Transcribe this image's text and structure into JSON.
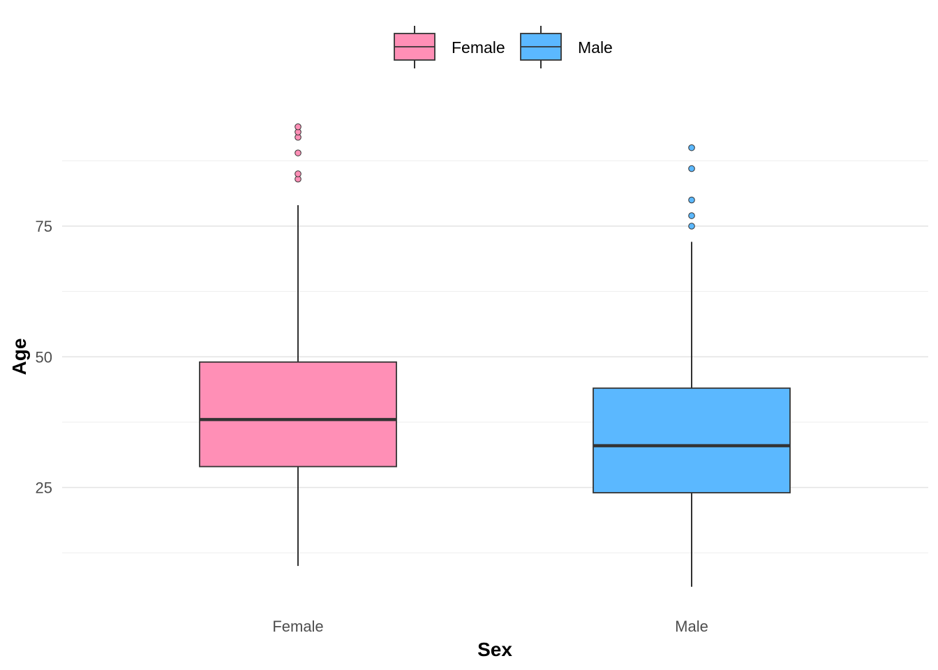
{
  "chart_data": {
    "type": "box",
    "title": "",
    "xlabel": "Sex",
    "ylabel": "Age",
    "ylim": [
      4,
      100
    ],
    "y_ticks": [
      25,
      50,
      75
    ],
    "y_minor_ticks": [
      12.5,
      37.5,
      62.5,
      87.5
    ],
    "grid": true,
    "legend_position": "top",
    "legend": [
      "Female",
      "Male"
    ],
    "categories": [
      "Female",
      "Male"
    ],
    "series": [
      {
        "name": "Female",
        "color": "#ff8fb6",
        "whisker_low": 10,
        "q1": 29,
        "median": 38,
        "q3": 49,
        "whisker_high": 79,
        "outliers": [
          84,
          85,
          89,
          92,
          93,
          94
        ]
      },
      {
        "name": "Male",
        "color": "#5bb8ff",
        "whisker_low": 6,
        "q1": 24,
        "median": 33,
        "q3": 44,
        "whisker_high": 72,
        "outliers": [
          75,
          77,
          80,
          86,
          90
        ]
      }
    ]
  }
}
